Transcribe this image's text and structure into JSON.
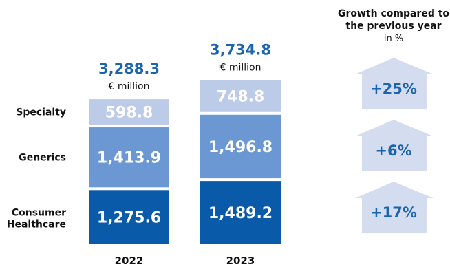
{
  "chart_data": {
    "type": "bar",
    "stacked": true,
    "categories": [
      "2022",
      "2023"
    ],
    "series": [
      {
        "name": "Consumer Healthcare",
        "values": [
          1275.6,
          1489.2
        ],
        "labels": [
          "1,275.6",
          "1,489.2"
        ],
        "color": "#0a5aaa"
      },
      {
        "name": "Generics",
        "values": [
          1413.9,
          1496.8
        ],
        "labels": [
          "1,413.9",
          "1,496.8"
        ],
        "color": "#6b97d2"
      },
      {
        "name": "Specialty",
        "values": [
          598.8,
          748.8
        ],
        "labels": [
          "598.8",
          "748.8"
        ],
        "color": "#bccbe8"
      }
    ],
    "totals": [
      {
        "value": 3288.3,
        "label": "3,288.3",
        "unit": "€ million"
      },
      {
        "value": 3734.8,
        "label": "3,734.8",
        "unit": "€ million"
      }
    ],
    "growth": {
      "title_line1": "Growth compared to",
      "title_line2": "the previous year",
      "unit": "in %",
      "items": [
        {
          "series": "Specialty",
          "label": "+25%"
        },
        {
          "series": "Generics",
          "label": "+6%"
        },
        {
          "series": "Consumer Healthcare",
          "label": "+17%"
        }
      ]
    }
  },
  "colors": {
    "total_text": "#1a64b0",
    "arrow_fill": "#d4ddf0",
    "arrow_text": "#1a64b0",
    "label_text": "#111111",
    "bar_label_light": "#ffffff"
  }
}
